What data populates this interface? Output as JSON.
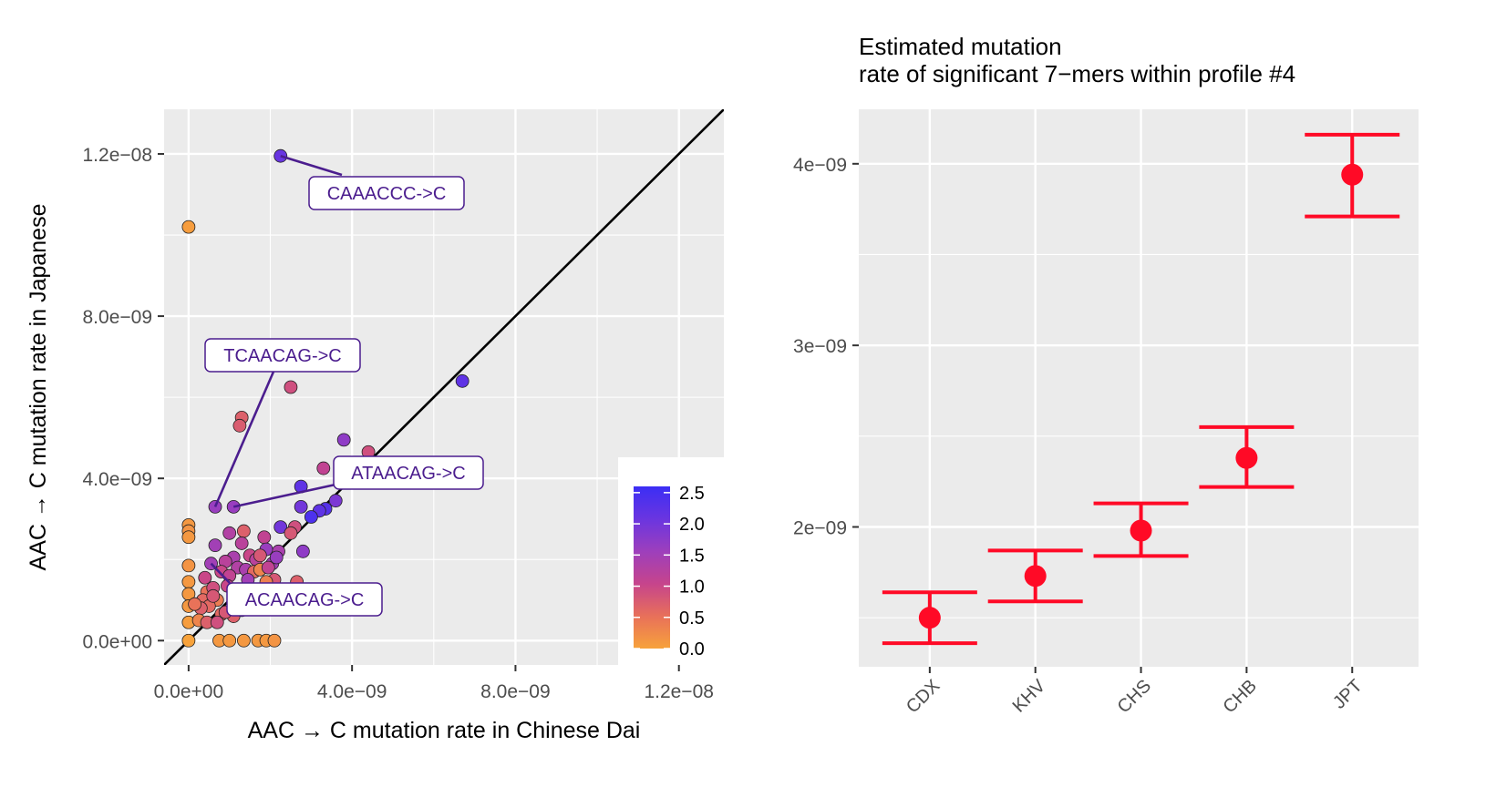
{
  "chart_data": [
    {
      "type": "scatter",
      "xlabel": "AAC → C mutation rate in Chinese Dai",
      "ylabel": "AAC → C mutation rate in Japanese",
      "xlim": [
        -6e-10,
        1.31e-08
      ],
      "ylim": [
        -6e-10,
        1.31e-08
      ],
      "x_ticks": [
        0,
        4e-09,
        8e-09,
        1.2e-08
      ],
      "x_tick_labels": [
        "0.0e+00",
        "4.0e−09",
        "8.0e−09",
        "1.2e−08"
      ],
      "y_ticks": [
        0,
        4e-09,
        8e-09,
        1.2e-08
      ],
      "y_tick_labels": [
        "0.0e+00",
        "4.0e−09",
        "8.0e−09",
        "1.2e−08"
      ],
      "grid": true,
      "reference_line": "y = x",
      "color_scale": {
        "ticks": [
          2.5,
          2.0,
          1.5,
          1.0,
          0.5,
          0.0
        ],
        "tick_labels": [
          "2.5",
          "2.0",
          "1.5",
          "1.0",
          "0.5",
          "0.0"
        ],
        "colors": [
          "#f7a23b",
          "#e8705a",
          "#c6448c",
          "#9d3fbc",
          "#6a35e0",
          "#3b2ef5"
        ],
        "range": [
          0,
          2.6
        ],
        "legend_position": "bottom-right inside"
      },
      "annotations": [
        {
          "label": "CAAACCC->C",
          "x": 2.25e-09,
          "y": 1.195e-08
        },
        {
          "label": "TCAACAG->C",
          "x": 6.5e-10,
          "y": 3.3e-09
        },
        {
          "label": "ATAACAG->C",
          "x": 1.1e-09,
          "y": 3.3e-09
        },
        {
          "label": "ACAACAG->C",
          "x": 5.5e-10,
          "y": 1.9e-09
        }
      ],
      "points": [
        {
          "x": 2.25e-09,
          "y": 1.195e-08,
          "c": 2.1
        },
        {
          "x": 0.0,
          "y": 1.02e-08,
          "c": 0.05
        },
        {
          "x": 6.7e-09,
          "y": 6.4e-09,
          "c": 2.2
        },
        {
          "x": 2.5e-09,
          "y": 6.25e-09,
          "c": 0.9
        },
        {
          "x": 1.3e-09,
          "y": 5.5e-09,
          "c": 0.7
        },
        {
          "x": 1.25e-09,
          "y": 5.3e-09,
          "c": 0.75
        },
        {
          "x": 3.8e-09,
          "y": 4.95e-09,
          "c": 1.7
        },
        {
          "x": 4.4e-09,
          "y": 4.65e-09,
          "c": 0.9
        },
        {
          "x": 3.3e-09,
          "y": 4.25e-09,
          "c": 1.1
        },
        {
          "x": 2.75e-09,
          "y": 3.8e-09,
          "c": 2.2
        },
        {
          "x": 6.5e-10,
          "y": 3.3e-09,
          "c": 1.6
        },
        {
          "x": 1.1e-09,
          "y": 3.3e-09,
          "c": 1.6
        },
        {
          "x": 3.6e-09,
          "y": 3.45e-09,
          "c": 1.9
        },
        {
          "x": 3.35e-09,
          "y": 3.25e-09,
          "c": 2.3
        },
        {
          "x": 3.2e-09,
          "y": 3.2e-09,
          "c": 2.2
        },
        {
          "x": 2.75e-09,
          "y": 3.3e-09,
          "c": 2.0
        },
        {
          "x": 3e-09,
          "y": 3.05e-09,
          "c": 2.4
        },
        {
          "x": 2.25e-09,
          "y": 2.8e-09,
          "c": 2.0
        },
        {
          "x": 2.6e-09,
          "y": 2.8e-09,
          "c": 0.9
        },
        {
          "x": 2.5e-09,
          "y": 2.65e-09,
          "c": 0.8
        },
        {
          "x": 0.0,
          "y": 2.85e-09,
          "c": 0.1
        },
        {
          "x": 0.0,
          "y": 2.7e-09,
          "c": 0.15
        },
        {
          "x": 0.0,
          "y": 2.55e-09,
          "c": 0.1
        },
        {
          "x": 1.35e-09,
          "y": 2.7e-09,
          "c": 0.7
        },
        {
          "x": 1e-09,
          "y": 2.65e-09,
          "c": 1.3
        },
        {
          "x": 1.85e-09,
          "y": 2.55e-09,
          "c": 1.1
        },
        {
          "x": 1.3e-09,
          "y": 2.4e-09,
          "c": 1.2
        },
        {
          "x": 6.5e-10,
          "y": 2.35e-09,
          "c": 1.5
        },
        {
          "x": 2.8e-09,
          "y": 2.2e-09,
          "c": 1.7
        },
        {
          "x": 2.2e-09,
          "y": 2.2e-09,
          "c": 1.4
        },
        {
          "x": 1.9e-09,
          "y": 2.25e-09,
          "c": 1.6
        },
        {
          "x": 1.5e-09,
          "y": 2.1e-09,
          "c": 1.0
        },
        {
          "x": 1.65e-09,
          "y": 2e-09,
          "c": 1.2
        },
        {
          "x": 1.75e-09,
          "y": 2.1e-09,
          "c": 0.8
        },
        {
          "x": 2.05e-09,
          "y": 1.9e-09,
          "c": 1.5
        },
        {
          "x": 2.15e-09,
          "y": 2.05e-09,
          "c": 1.6
        },
        {
          "x": 1.1e-09,
          "y": 2.05e-09,
          "c": 1.4
        },
        {
          "x": 9e-10,
          "y": 1.95e-09,
          "c": 1.2
        },
        {
          "x": 5.5e-10,
          "y": 1.9e-09,
          "c": 1.5
        },
        {
          "x": 1.2e-09,
          "y": 1.8e-09,
          "c": 1.3
        },
        {
          "x": 1.4e-09,
          "y": 1.75e-09,
          "c": 1.4
        },
        {
          "x": 1.6e-09,
          "y": 1.7e-09,
          "c": 0.6
        },
        {
          "x": 1.75e-09,
          "y": 1.75e-09,
          "c": 0.3
        },
        {
          "x": 1.95e-09,
          "y": 1.8e-09,
          "c": 1.1
        },
        {
          "x": 8e-10,
          "y": 1.7e-09,
          "c": 1.0
        },
        {
          "x": 1e-09,
          "y": 1.6e-09,
          "c": 1.1
        },
        {
          "x": 0.0,
          "y": 1.85e-09,
          "c": 0.15
        },
        {
          "x": 0.0,
          "y": 1.45e-09,
          "c": 0.1
        },
        {
          "x": 4e-10,
          "y": 1.55e-09,
          "c": 1.0
        },
        {
          "x": 1.45e-09,
          "y": 1.5e-09,
          "c": 1.5
        },
        {
          "x": 2.1e-09,
          "y": 1.5e-09,
          "c": 0.8
        },
        {
          "x": 2.65e-09,
          "y": 1.45e-09,
          "c": 0.7
        },
        {
          "x": 1.9e-09,
          "y": 1.45e-09,
          "c": 0.35
        },
        {
          "x": 0.0,
          "y": 1.15e-09,
          "c": 0.1
        },
        {
          "x": 4.5e-10,
          "y": 1.2e-09,
          "c": 0.5
        },
        {
          "x": 1.4e-09,
          "y": 1.25e-09,
          "c": 1.0
        },
        {
          "x": 2.6e-09,
          "y": 1.25e-09,
          "c": 0.7
        },
        {
          "x": 7e-10,
          "y": 1e-09,
          "c": 0.4
        },
        {
          "x": 9.5e-10,
          "y": 1.35e-09,
          "c": 1.0
        },
        {
          "x": 1.1e-09,
          "y": 1.2e-09,
          "c": 0.9
        },
        {
          "x": 3.5e-10,
          "y": 1e-09,
          "c": 0.6
        },
        {
          "x": 6e-10,
          "y": 1.3e-09,
          "c": 0.9
        },
        {
          "x": 0.0,
          "y": 8.5e-10,
          "c": 0.1
        },
        {
          "x": 5e-10,
          "y": 8.5e-10,
          "c": 0.6
        },
        {
          "x": 3e-10,
          "y": 8e-10,
          "c": 0.7
        },
        {
          "x": 1.5e-10,
          "y": 9e-10,
          "c": 0.5
        },
        {
          "x": 0.0,
          "y": 4.5e-10,
          "c": 0.05
        },
        {
          "x": 2.5e-10,
          "y": 5e-10,
          "c": 0.3
        },
        {
          "x": 8e-10,
          "y": 6.5e-10,
          "c": 0.6
        },
        {
          "x": 1.1e-09,
          "y": 6e-10,
          "c": 0.7
        },
        {
          "x": 9e-10,
          "y": 7e-10,
          "c": 0.8
        },
        {
          "x": 1.3e-09,
          "y": 7.5e-10,
          "c": 1.1
        },
        {
          "x": 1.6e-09,
          "y": 8.5e-10,
          "c": 0.6
        },
        {
          "x": 1.9e-09,
          "y": 8e-10,
          "c": 0.5
        },
        {
          "x": 4.5e-10,
          "y": 4.5e-10,
          "c": 0.7
        },
        {
          "x": 7e-10,
          "y": 4.5e-10,
          "c": 0.9
        },
        {
          "x": 6e-10,
          "y": 1.1e-09,
          "c": 0.8
        },
        {
          "x": 0.0,
          "y": 0.0,
          "c": 0.0
        },
        {
          "x": 7.5e-10,
          "y": 0.0,
          "c": 0.1
        },
        {
          "x": 1e-09,
          "y": 0.0,
          "c": 0.1
        },
        {
          "x": 1.35e-09,
          "y": 0.0,
          "c": 0.1
        },
        {
          "x": 1.7e-09,
          "y": 0.0,
          "c": 0.1
        },
        {
          "x": 1.9e-09,
          "y": 0.0,
          "c": 0.1
        },
        {
          "x": 2.1e-09,
          "y": 0.0,
          "c": 0.15
        }
      ]
    },
    {
      "type": "errorbar",
      "title": "Estimated mutation\nrate of significant 7−mers within profile #4",
      "categories": [
        "CDX",
        "KHV",
        "CHS",
        "CHB",
        "JPT"
      ],
      "values": [
        1.5e-09,
        1.73e-09,
        1.98e-09,
        2.38e-09,
        3.94e-09
      ],
      "lower": [
        1.36e-09,
        1.59e-09,
        1.84e-09,
        2.22e-09,
        3.71e-09
      ],
      "upper": [
        1.64e-09,
        1.87e-09,
        2.13e-09,
        2.55e-09,
        4.16e-09
      ],
      "ylim": [
        1.23e-09,
        4.3e-09
      ],
      "y_ticks": [
        2e-09,
        3e-09,
        4e-09
      ],
      "y_tick_labels": [
        "2e−09",
        "3e−09",
        "4e−09"
      ],
      "color": "#ff0a26",
      "grid": true
    }
  ]
}
